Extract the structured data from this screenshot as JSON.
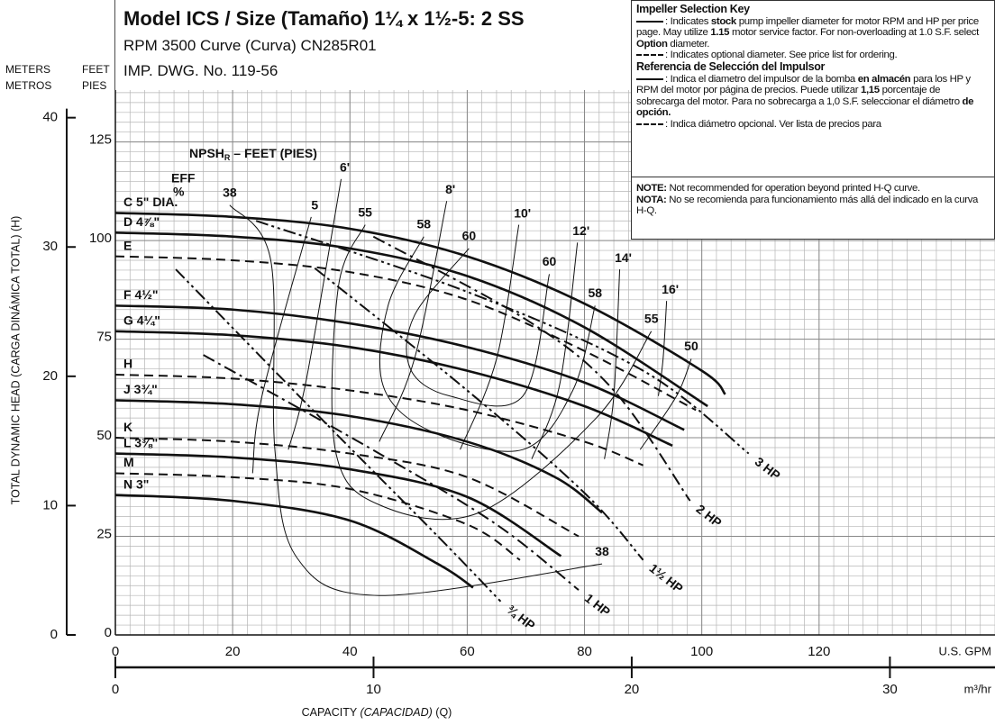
{
  "title_box": {
    "title": "Model ICS / Size (Tamaño) 1¼ x 1½-5: 2 SS",
    "line1": "RPM 3500 Curve (Curva) CN285R01",
    "line2": "IMP. DWG. No. 119-56"
  },
  "key": {
    "blocks": [
      {
        "runs": [
          {
            "text": "Impeller Selection Key",
            "bold": true
          }
        ]
      },
      {
        "symbol": "solid",
        "runs": [
          {
            "text": ": Indicates "
          },
          {
            "text": "stock",
            "bold": true
          },
          {
            "text": " pump impeller diameter for motor RPM and HP per price page. May utilize "
          },
          {
            "text": "1.15",
            "bold": true
          },
          {
            "text": " motor service factor. For non-overloading at 1.0 S.F. select "
          },
          {
            "text": "Option",
            "bold": true
          },
          {
            "text": " diameter."
          }
        ]
      },
      {
        "symbol": "dashed",
        "runs": [
          {
            "text": ": Indicates optional diameter. See price list for ordering."
          }
        ]
      },
      {
        "runs": [
          {
            "text": "Referencia de Selección del Impulsor",
            "bold": true
          }
        ]
      },
      {
        "symbol": "solid",
        "runs": [
          {
            "text": ": Indica el diametro del impulsor de la bomba "
          },
          {
            "text": "en almacén",
            "bold": true
          },
          {
            "text": " para los HP y RPM del motor por página de precios. Puede utilizar "
          },
          {
            "text": "1,15",
            "bold": true
          },
          {
            "text": " porcentaje de sobrecarga del motor. Para no sobrecarga a 1,0 S.F. seleccionar el diámetro "
          },
          {
            "text": "de opción.",
            "bold": true
          }
        ]
      },
      {
        "symbol": "dashed",
        "runs": [
          {
            "text": ": Indica diámetro opcional. Ver lista de precios para"
          }
        ]
      }
    ]
  },
  "note": {
    "blocks": [
      {
        "runs": [
          {
            "text": "NOTE:",
            "bold": true
          },
          {
            "text": " Not recommended for operation beyond printed H-Q curve."
          }
        ]
      },
      {
        "runs": [
          {
            "text": "NOTA:",
            "bold": true
          },
          {
            "text": " No se recomienda para funcionamiento más allá del indicado en la curva H-Q."
          }
        ]
      }
    ]
  },
  "chart_data": {
    "type": "line",
    "y_label": "TOTAL DYNAMIC HEAD (CARGA DINÁMICA TOTAL) (H)",
    "y_unit": "FEET",
    "y_unit_es": "PIES",
    "y2_unit": "METERS",
    "y2_unit_es": "METROS",
    "x_label_runs": [
      {
        "text": "CAPACITY "
      },
      {
        "text": "(CAPACIDAD)",
        "italic": true
      },
      {
        "text": " (Q)"
      }
    ],
    "x_unit": "U.S. GPM",
    "x2_unit": "m³/hr",
    "npsh_title": "NPSH",
    "npsh_sub": "R",
    "npsh_rest": " – FEET (PIES)",
    "eff_title": "EFF",
    "eff_unit": "%",
    "xlim": [
      0,
      150
    ],
    "xticks": [
      0,
      20,
      40,
      60,
      80,
      100,
      120
    ],
    "x2lim": [
      0,
      34.07
    ],
    "x2ticks": [
      0,
      10,
      20,
      30
    ],
    "ylim": [
      0,
      161
    ],
    "yticks": [
      0,
      25,
      50,
      75,
      100,
      125
    ],
    "y2lim": [
      0,
      49.1
    ],
    "y2ticks": [
      0,
      10,
      20,
      30,
      40
    ],
    "grid": true,
    "series": [
      {
        "name": "C 5\" DIA.",
        "dashed": false,
        "x": [
          0,
          20,
          40,
          60,
          80,
          100,
          104
        ],
        "values": [
          107,
          106,
          103,
          96,
          84,
          67,
          61
        ]
      },
      {
        "name": "D 4⅞\"",
        "dashed": false,
        "x": [
          0,
          20,
          40,
          60,
          80,
          101
        ],
        "values": [
          102,
          101,
          98,
          91,
          78,
          58
        ]
      },
      {
        "name": "E",
        "dashed": true,
        "x": [
          0,
          20,
          40,
          60,
          80,
          99
        ],
        "values": [
          96,
          95,
          92,
          85,
          72,
          57
        ]
      },
      {
        "name": "F 4½\"",
        "dashed": false,
        "x": [
          0,
          20,
          40,
          60,
          80,
          97
        ],
        "values": [
          83.5,
          82.5,
          79,
          73,
          64,
          52
        ]
      },
      {
        "name": "G 4¼\"",
        "dashed": false,
        "x": [
          0,
          20,
          40,
          60,
          80,
          95
        ],
        "values": [
          77,
          76,
          73,
          67,
          58,
          48
        ]
      },
      {
        "name": "H",
        "dashed": true,
        "x": [
          0,
          20,
          40,
          60,
          80,
          90
        ],
        "values": [
          66,
          65,
          62,
          57,
          49,
          43
        ]
      },
      {
        "name": "J 3¾\"",
        "dashed": false,
        "x": [
          0,
          20,
          40,
          60,
          75,
          83
        ],
        "values": [
          59.5,
          58.5,
          55.5,
          49,
          40,
          31
        ]
      },
      {
        "name": "K",
        "dashed": true,
        "x": [
          0,
          20,
          40,
          60,
          79
        ],
        "values": [
          50,
          49,
          46,
          40,
          25
        ]
      },
      {
        "name": "L 3⅜\"",
        "dashed": false,
        "x": [
          0,
          20,
          40,
          60,
          76
        ],
        "values": [
          46,
          45,
          42,
          35,
          20
        ]
      },
      {
        "name": "M",
        "dashed": true,
        "x": [
          0,
          20,
          40,
          60,
          69
        ],
        "values": [
          41,
          40,
          37,
          28,
          19
        ]
      },
      {
        "name": "N 3\"",
        "dashed": false,
        "x": [
          0,
          20,
          40,
          55,
          61
        ],
        "values": [
          35.5,
          34,
          29,
          18,
          12
        ]
      }
    ],
    "hp_lines": [
      {
        "name": "3 HP",
        "x": [
          24,
          60,
          90,
          108
        ],
        "values": [
          105,
          87,
          67,
          46
        ]
      },
      {
        "name": "2 HP",
        "x": [
          44,
          70,
          85,
          98
        ],
        "values": [
          101,
          80,
          62,
          34
        ]
      },
      {
        "name": "1½ HP",
        "x": [
          34,
          60,
          80,
          90
        ],
        "values": [
          93,
          62,
          36,
          19
        ]
      },
      {
        "name": "1 HP",
        "x": [
          15,
          45,
          65,
          79
        ],
        "values": [
          71,
          46,
          28,
          11.4
        ]
      },
      {
        "name": "¾ HP",
        "x": [
          10.3,
          35,
          55,
          65.7
        ],
        "values": [
          92.7,
          55,
          25,
          8.5
        ]
      }
    ],
    "efficiency": [
      {
        "labels": [
          "38",
          "38"
        ],
        "x": [
          19.5,
          26.5,
          27.2,
          31,
          45,
          83
        ],
        "values": [
          109,
          95,
          47,
          19.5,
          10,
          18
        ]
      },
      {
        "labels": [
          "55",
          "55"
        ],
        "x": [
          42.6,
          38,
          37.5,
          45,
          62,
          82,
          91.4
        ],
        "values": [
          104,
          88,
          47,
          33,
          31,
          55,
          77
        ]
      },
      {
        "labels": [
          "58",
          "58"
        ],
        "x": [
          52.6,
          46.5,
          45.7,
          54,
          69.5,
          78,
          81.8
        ],
        "values": [
          101,
          83.5,
          63,
          51.5,
          47,
          62,
          83.5
        ]
      },
      {
        "labels": [
          "60",
          "60"
        ],
        "x": [
          60.3,
          51,
          50.3,
          57,
          69.5,
          74
        ],
        "values": [
          98,
          81,
          67.5,
          60.6,
          60.6,
          91.5
        ]
      },
      {
        "labels": [
          "50"
        ],
        "x": [
          98.2,
          95.7,
          89.5
        ],
        "values": [
          70,
          60.6,
          47
        ]
      }
    ],
    "npsh": [
      {
        "name": "5",
        "x": [
          33.4,
          25,
          23.4
        ],
        "values": [
          106,
          60.6,
          41
        ]
      },
      {
        "name": "6'",
        "x": [
          38.5,
          32.6,
          29.5
        ],
        "values": [
          115.6,
          65,
          47
        ]
      },
      {
        "name": "8'",
        "x": [
          56.5,
          51,
          45
        ],
        "values": [
          110,
          70,
          49
        ]
      },
      {
        "name": "10'",
        "x": [
          68.8,
          65,
          58.8
        ],
        "values": [
          104,
          70,
          47
        ]
      },
      {
        "name": "12'",
        "x": [
          78.8,
          75.7,
          71
        ],
        "values": [
          99.5,
          63,
          44.6
        ]
      },
      {
        "name": "14'",
        "x": [
          86,
          85,
          83.4
        ],
        "values": [
          92.7,
          60.6,
          44.6
        ]
      },
      {
        "name": "16'",
        "x": [
          94,
          93.4,
          92.6
        ],
        "values": [
          84.7,
          70,
          60.6
        ]
      }
    ]
  }
}
